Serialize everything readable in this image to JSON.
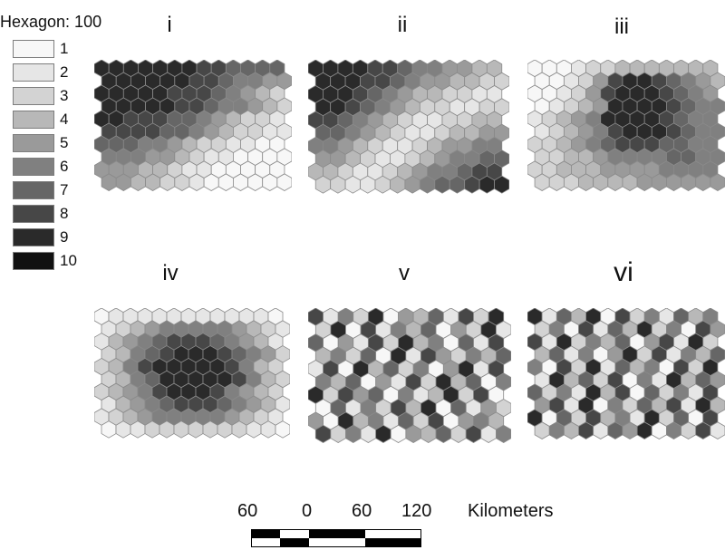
{
  "legend": {
    "title": "Hexagon: 100",
    "classes": [
      {
        "label": "1",
        "color": "#f7f7f7"
      },
      {
        "label": "2",
        "color": "#e6e6e6"
      },
      {
        "label": "3",
        "color": "#d3d3d3"
      },
      {
        "label": "4",
        "color": "#b8b8b8"
      },
      {
        "label": "5",
        "color": "#9a9a9a"
      },
      {
        "label": "6",
        "color": "#808080"
      },
      {
        "label": "7",
        "color": "#666666"
      },
      {
        "label": "8",
        "color": "#474747"
      },
      {
        "label": "9",
        "color": "#2a2a2a"
      },
      {
        "label": "10",
        "color": "#111111"
      }
    ]
  },
  "panels": [
    {
      "label": "i",
      "rows": [
        "9999999887777",
        "9999998876655",
        "9999988876543",
        "9999988766543",
        "9988877654332",
        "8888776543322",
        "7776654332211",
        "6665543221111",
        "5554432211111",
        "5544332111111"
      ]
    },
    {
      "label": "ii",
      "rows": [
        "9999887665544",
        "9998876554433",
        "9998765443322",
        "9987654332233",
        "8876543223344",
        "7765432234455",
        "6654322345566",
        "5543223456677",
        "4432234566788",
        "3322345677899"
      ]
    },
    {
      "label": "iii",
      "rows": [
        "1112334444444",
        "1123589987654",
        "1123589998765",
        "1234599998766",
        "2345699998766",
        "2345689998766",
        "3345678887766",
        "3344566667766",
        "3344455556666",
        "3334444555555"
      ]
    },
    {
      "label": "iv",
      "rows": [
        "1222222222221",
        "2345666665432",
        "2456788876542",
        "3467899987653",
        "3468999998643",
        "3467999998643",
        "3456899986543",
        "2456788876542",
        "2345666665432",
        "1223333333221"
      ]
    },
    {
      "label": "v",
      "rows": [
        "8263915472839",
        "3918264715392",
        "7152839461728",
        "4637192853647",
        "2819473615928",
        "6471528394716",
        "9385716249381",
        "1726384917253",
        "5194627381564",
        "8362915473826"
      ]
    },
    {
      "label": "vi",
      "rows": [
        "9274918362746",
        "3618274936185",
        "8293647158293",
        "4726159382647",
        "6183927461839",
        "2947381629475",
        "7362948173628",
        "5829163748294",
        "9173846293718",
        "3648275916382"
      ]
    }
  ],
  "scale": {
    "ticks": [
      "60",
      "0",
      "60",
      "120"
    ],
    "unit": "Kilometers"
  }
}
